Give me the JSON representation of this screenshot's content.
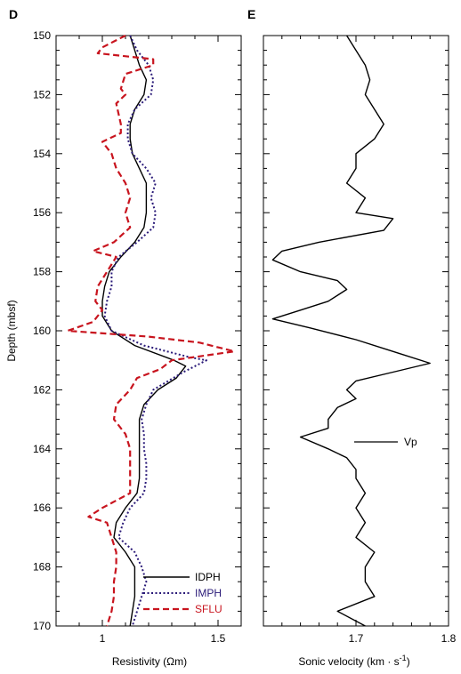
{
  "chart_data": [
    {
      "type": "line",
      "panel_label": "D",
      "xlabel": "Resistivity (Ωm)",
      "ylabel": "Depth (mbsf)",
      "xlim": [
        0.8,
        1.6
      ],
      "ylim": [
        170,
        150
      ],
      "x_ticks": [
        "1",
        "1.5"
      ],
      "y_ticks": [
        "150",
        "152",
        "154",
        "156",
        "158",
        "160",
        "162",
        "164",
        "166",
        "168",
        "170"
      ],
      "legend_position": "bottom-right",
      "series": [
        {
          "name": "IDPH",
          "color": "#000000",
          "dash": "solid",
          "points": [
            [
              1.12,
              150
            ],
            [
              1.14,
              150.5
            ],
            [
              1.16,
              151
            ],
            [
              1.19,
              151.5
            ],
            [
              1.18,
              152
            ],
            [
              1.14,
              152.5
            ],
            [
              1.12,
              153
            ],
            [
              1.12,
              153.5
            ],
            [
              1.13,
              154
            ],
            [
              1.16,
              154.5
            ],
            [
              1.19,
              155
            ],
            [
              1.19,
              155.5
            ],
            [
              1.19,
              156
            ],
            [
              1.18,
              156.5
            ],
            [
              1.14,
              157
            ],
            [
              1.08,
              157.5
            ],
            [
              1.03,
              158
            ],
            [
              1.01,
              158.5
            ],
            [
              1.0,
              159
            ],
            [
              1.0,
              159.5
            ],
            [
              1.04,
              160
            ],
            [
              1.14,
              160.5
            ],
            [
              1.31,
              161
            ],
            [
              1.36,
              161.2
            ],
            [
              1.32,
              161.6
            ],
            [
              1.24,
              162
            ],
            [
              1.18,
              162.5
            ],
            [
              1.16,
              163
            ],
            [
              1.16,
              163.5
            ],
            [
              1.16,
              164
            ],
            [
              1.16,
              164.5
            ],
            [
              1.16,
              165
            ],
            [
              1.15,
              165.5
            ],
            [
              1.1,
              166
            ],
            [
              1.06,
              166.5
            ],
            [
              1.05,
              167
            ],
            [
              1.1,
              167.5
            ],
            [
              1.14,
              168
            ],
            [
              1.14,
              168.5
            ],
            [
              1.14,
              169
            ],
            [
              1.13,
              169.5
            ],
            [
              1.12,
              170
            ]
          ]
        },
        {
          "name": "IMPH",
          "color": "#2a1a78",
          "dash": "dotted",
          "points": [
            [
              1.12,
              150
            ],
            [
              1.15,
              150.5
            ],
            [
              1.2,
              151
            ],
            [
              1.22,
              151.5
            ],
            [
              1.21,
              152
            ],
            [
              1.14,
              152.5
            ],
            [
              1.11,
              153
            ],
            [
              1.11,
              153.5
            ],
            [
              1.13,
              154
            ],
            [
              1.19,
              154.5
            ],
            [
              1.23,
              155
            ],
            [
              1.21,
              155.5
            ],
            [
              1.23,
              156
            ],
            [
              1.22,
              156.5
            ],
            [
              1.15,
              157
            ],
            [
              1.07,
              157.5
            ],
            [
              1.04,
              158
            ],
            [
              1.04,
              158.5
            ],
            [
              1.02,
              159
            ],
            [
              1.01,
              159.5
            ],
            [
              1.04,
              160
            ],
            [
              1.18,
              160.5
            ],
            [
              1.38,
              160.9
            ],
            [
              1.45,
              161.0
            ],
            [
              1.35,
              161.4
            ],
            [
              1.22,
              162
            ],
            [
              1.19,
              162.5
            ],
            [
              1.17,
              163
            ],
            [
              1.18,
              163.5
            ],
            [
              1.18,
              164
            ],
            [
              1.19,
              164.5
            ],
            [
              1.19,
              165
            ],
            [
              1.18,
              165.5
            ],
            [
              1.12,
              166
            ],
            [
              1.09,
              166.5
            ],
            [
              1.07,
              167
            ],
            [
              1.14,
              167.5
            ],
            [
              1.17,
              168
            ],
            [
              1.19,
              168.5
            ],
            [
              1.17,
              169
            ],
            [
              1.15,
              169.5
            ],
            [
              1.13,
              170
            ]
          ]
        },
        {
          "name": "SFLU",
          "color": "#c8141e",
          "dash": "dashed",
          "points": [
            [
              1.1,
              150
            ],
            [
              1.0,
              150.4
            ],
            [
              0.98,
              150.6
            ],
            [
              1.22,
              150.8
            ],
            [
              1.22,
              151
            ],
            [
              1.1,
              151.3
            ],
            [
              1.08,
              151.8
            ],
            [
              1.1,
              152
            ],
            [
              1.06,
              152.3
            ],
            [
              1.08,
              153
            ],
            [
              1.08,
              153.3
            ],
            [
              1.0,
              153.6
            ],
            [
              1.04,
              154
            ],
            [
              1.06,
              154.5
            ],
            [
              1.1,
              155
            ],
            [
              1.12,
              155.5
            ],
            [
              1.1,
              156
            ],
            [
              1.12,
              156.5
            ],
            [
              1.05,
              157
            ],
            [
              0.96,
              157.3
            ],
            [
              1.06,
              157.5
            ],
            [
              1.02,
              158
            ],
            [
              0.98,
              158.5
            ],
            [
              0.97,
              159
            ],
            [
              1.0,
              159.3
            ],
            [
              0.96,
              159.7
            ],
            [
              0.85,
              160
            ],
            [
              1.2,
              160.2
            ],
            [
              1.42,
              160.4
            ],
            [
              1.57,
              160.7
            ],
            [
              1.3,
              161.0
            ],
            [
              1.25,
              161.3
            ],
            [
              1.15,
              161.6
            ],
            [
              1.12,
              162
            ],
            [
              1.06,
              162.5
            ],
            [
              1.05,
              163
            ],
            [
              1.1,
              163.5
            ],
            [
              1.12,
              164
            ],
            [
              1.12,
              164.5
            ],
            [
              1.12,
              165
            ],
            [
              1.12,
              165.5
            ],
            [
              1.0,
              166
            ],
            [
              0.94,
              166.3
            ],
            [
              1.02,
              166.5
            ],
            [
              1.04,
              167
            ],
            [
              1.06,
              167.5
            ],
            [
              1.06,
              168
            ],
            [
              1.05,
              168.5
            ],
            [
              1.05,
              169
            ],
            [
              1.04,
              169.5
            ],
            [
              1.02,
              170
            ]
          ]
        }
      ]
    },
    {
      "type": "line",
      "panel_label": "E",
      "xlabel": "Sonic velocity (km · s",
      "xlabel_sup": "-1",
      "xlabel_end": ")",
      "ylim": [
        170,
        150
      ],
      "xlim": [
        1.6,
        1.8
      ],
      "x_ticks": [
        "1.7",
        "1.8"
      ],
      "legend_position": "center-right",
      "series": [
        {
          "name": "Vp",
          "color": "#000000",
          "dash": "solid",
          "points": [
            [
              1.69,
              150
            ],
            [
              1.7,
              150.5
            ],
            [
              1.71,
              151
            ],
            [
              1.715,
              151.5
            ],
            [
              1.71,
              152
            ],
            [
              1.72,
              152.5
            ],
            [
              1.73,
              153
            ],
            [
              1.72,
              153.5
            ],
            [
              1.7,
              154
            ],
            [
              1.7,
              154.5
            ],
            [
              1.69,
              155
            ],
            [
              1.71,
              155.5
            ],
            [
              1.7,
              156
            ],
            [
              1.74,
              156.2
            ],
            [
              1.73,
              156.6
            ],
            [
              1.66,
              157
            ],
            [
              1.62,
              157.3
            ],
            [
              1.61,
              157.6
            ],
            [
              1.64,
              158
            ],
            [
              1.68,
              158.3
            ],
            [
              1.69,
              158.6
            ],
            [
              1.67,
              159
            ],
            [
              1.64,
              159.3
            ],
            [
              1.61,
              159.6
            ],
            [
              1.65,
              159.9
            ],
            [
              1.7,
              160.3
            ],
            [
              1.73,
              160.6
            ],
            [
              1.75,
              160.8
            ],
            [
              1.78,
              161.1
            ],
            [
              1.74,
              161.4
            ],
            [
              1.7,
              161.7
            ],
            [
              1.69,
              162
            ],
            [
              1.7,
              162.3
            ],
            [
              1.68,
              162.6
            ],
            [
              1.67,
              163
            ],
            [
              1.67,
              163.3
            ],
            [
              1.64,
              163.6
            ],
            [
              1.67,
              164
            ],
            [
              1.69,
              164.3
            ],
            [
              1.7,
              164.7
            ],
            [
              1.7,
              165
            ],
            [
              1.71,
              165.5
            ],
            [
              1.7,
              166
            ],
            [
              1.71,
              166.5
            ],
            [
              1.7,
              167
            ],
            [
              1.72,
              167.5
            ],
            [
              1.71,
              168
            ],
            [
              1.71,
              168.5
            ],
            [
              1.72,
              169
            ],
            [
              1.68,
              169.5
            ],
            [
              1.71,
              170
            ]
          ]
        }
      ]
    }
  ]
}
